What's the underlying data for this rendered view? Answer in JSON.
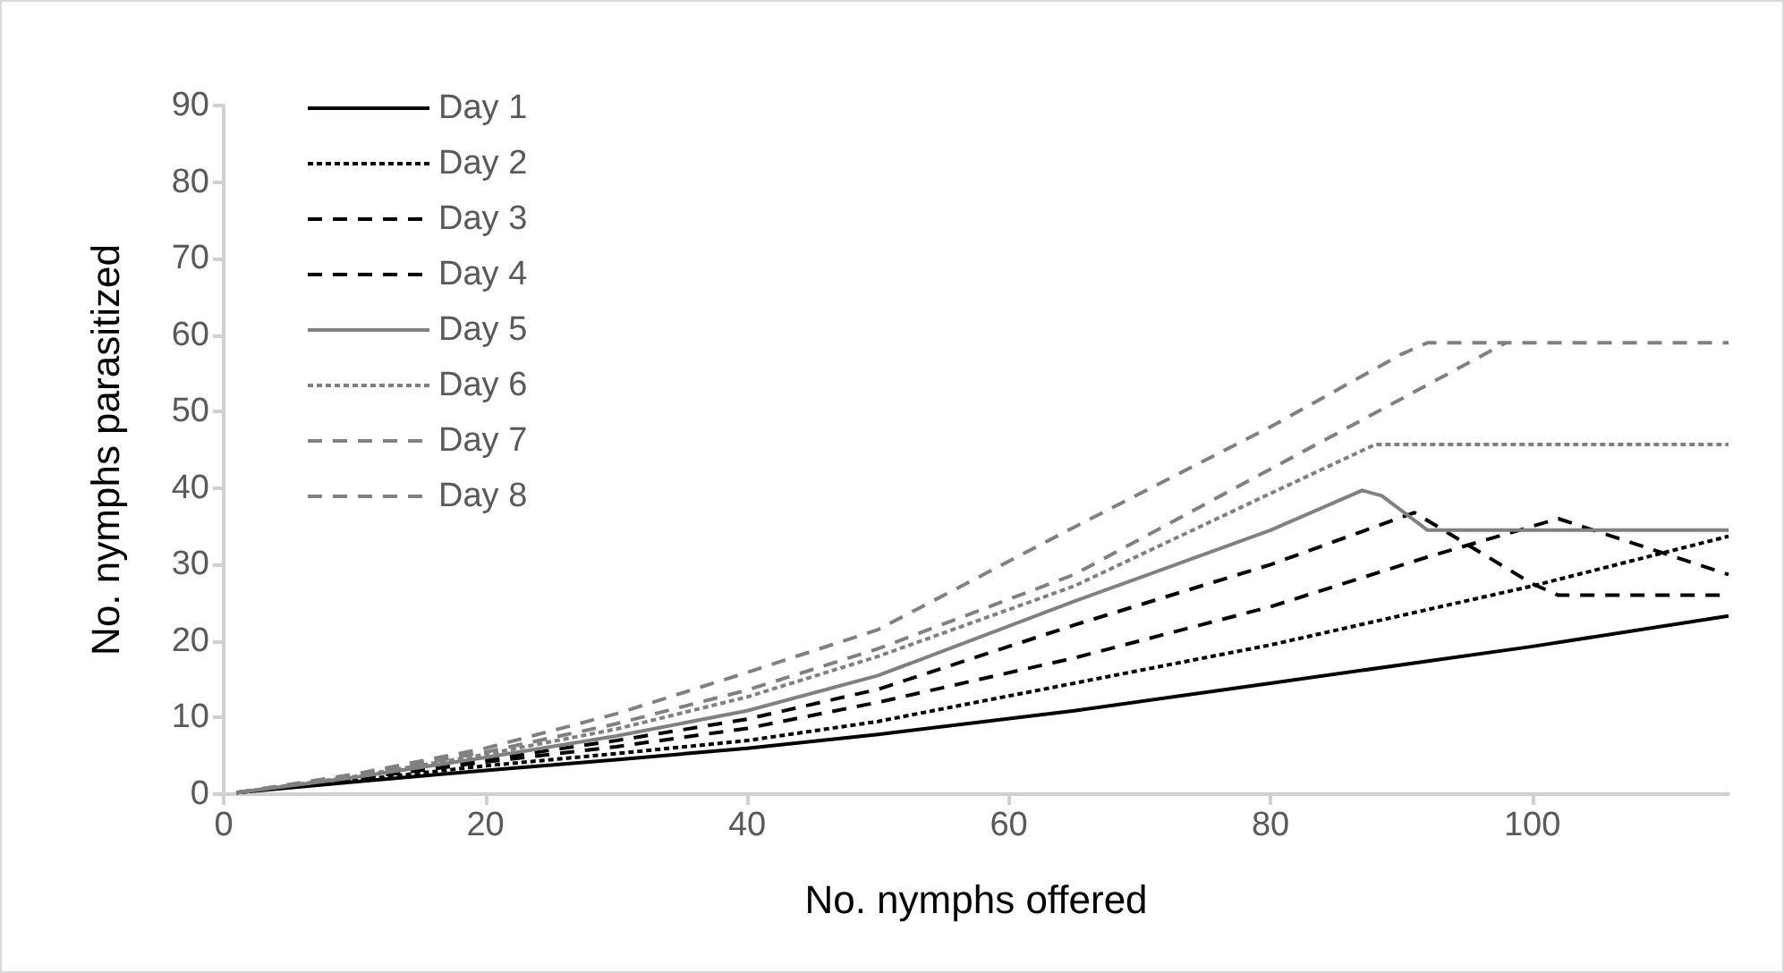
{
  "chart_data": {
    "type": "line",
    "xlabel": "No. nymphs offered",
    "ylabel": "No. nymphs parasitized",
    "xlim": [
      0,
      115
    ],
    "xticks": [
      0,
      20,
      40,
      60,
      80,
      100
    ],
    "ylim": [
      0,
      90
    ],
    "yticks": [
      0,
      10,
      20,
      30,
      40,
      50,
      60,
      70,
      80,
      90
    ],
    "grid": false,
    "legend": "top left",
    "marker": "none",
    "series": [
      {
        "name": "Day 1",
        "color": "#000000",
        "line_style": "solid",
        "x": [
          1,
          10,
          20,
          30,
          40,
          50,
          65,
          80,
          100,
          115
        ],
        "values": [
          0.2,
          1.6,
          3.1,
          4.5,
          6,
          7.8,
          10.9,
          14.5,
          19.3,
          23.3
        ]
      },
      {
        "name": "Day 2",
        "color": "#000000",
        "line_style": "dotted",
        "x": [
          1,
          10,
          20,
          30,
          40,
          50,
          65,
          80,
          100,
          115
        ],
        "values": [
          0.2,
          1.8,
          3.7,
          5.3,
          7,
          9.5,
          14.5,
          19.5,
          27.2,
          33.7
        ]
      },
      {
        "name": "Day 3",
        "color": "#000000",
        "line_style": "dashed",
        "x": [
          1,
          10,
          20,
          30,
          40,
          50,
          65,
          80,
          92,
          102,
          115
        ],
        "values": [
          0.2,
          2,
          4.2,
          6.2,
          8.6,
          12,
          17.8,
          24.5,
          31,
          36,
          28.7
        ]
      },
      {
        "name": "Day 4",
        "color": "#000000",
        "line_style": "dashed",
        "x": [
          1,
          10,
          20,
          30,
          40,
          50,
          65,
          80,
          91,
          100,
          102,
          115
        ],
        "values": [
          0.2,
          2.1,
          4.5,
          7,
          9.8,
          13.7,
          22.1,
          30,
          36.8,
          27.5,
          26,
          26
        ]
      },
      {
        "name": "Day 5",
        "color": "#808080",
        "line_style": "solid",
        "x": [
          1,
          10,
          20,
          30,
          40,
          50,
          65,
          80,
          87,
          88.5,
          92,
          115
        ],
        "values": [
          0.2,
          2.2,
          4.8,
          7.6,
          10.9,
          15.5,
          25.2,
          34.5,
          39.7,
          39,
          34.5,
          34.5
        ]
      },
      {
        "name": "Day 6",
        "color": "#808080",
        "line_style": "dotted",
        "x": [
          1,
          10,
          20,
          30,
          40,
          50,
          65,
          80,
          88,
          115
        ],
        "values": [
          0.2,
          2.3,
          5.2,
          8.5,
          12.7,
          18,
          27.2,
          39.3,
          45.7,
          45.7
        ]
      },
      {
        "name": "Day 7",
        "color": "#808080",
        "line_style": "dashed",
        "x": [
          1,
          10,
          20,
          30,
          40,
          50,
          65,
          80,
          98
        ],
        "values": [
          0.2,
          2.4,
          5.5,
          9.2,
          13.6,
          19,
          28.7,
          42.5,
          59
        ]
      },
      {
        "name": "Day 8",
        "color": "#808080",
        "line_style": "dashed",
        "x": [
          1,
          10,
          20,
          30,
          40,
          50,
          65,
          80,
          90,
          92,
          115
        ],
        "values": [
          0.2,
          2.6,
          6,
          10.5,
          15.9,
          21.5,
          34.9,
          48,
          57.5,
          59,
          59
        ]
      }
    ]
  }
}
